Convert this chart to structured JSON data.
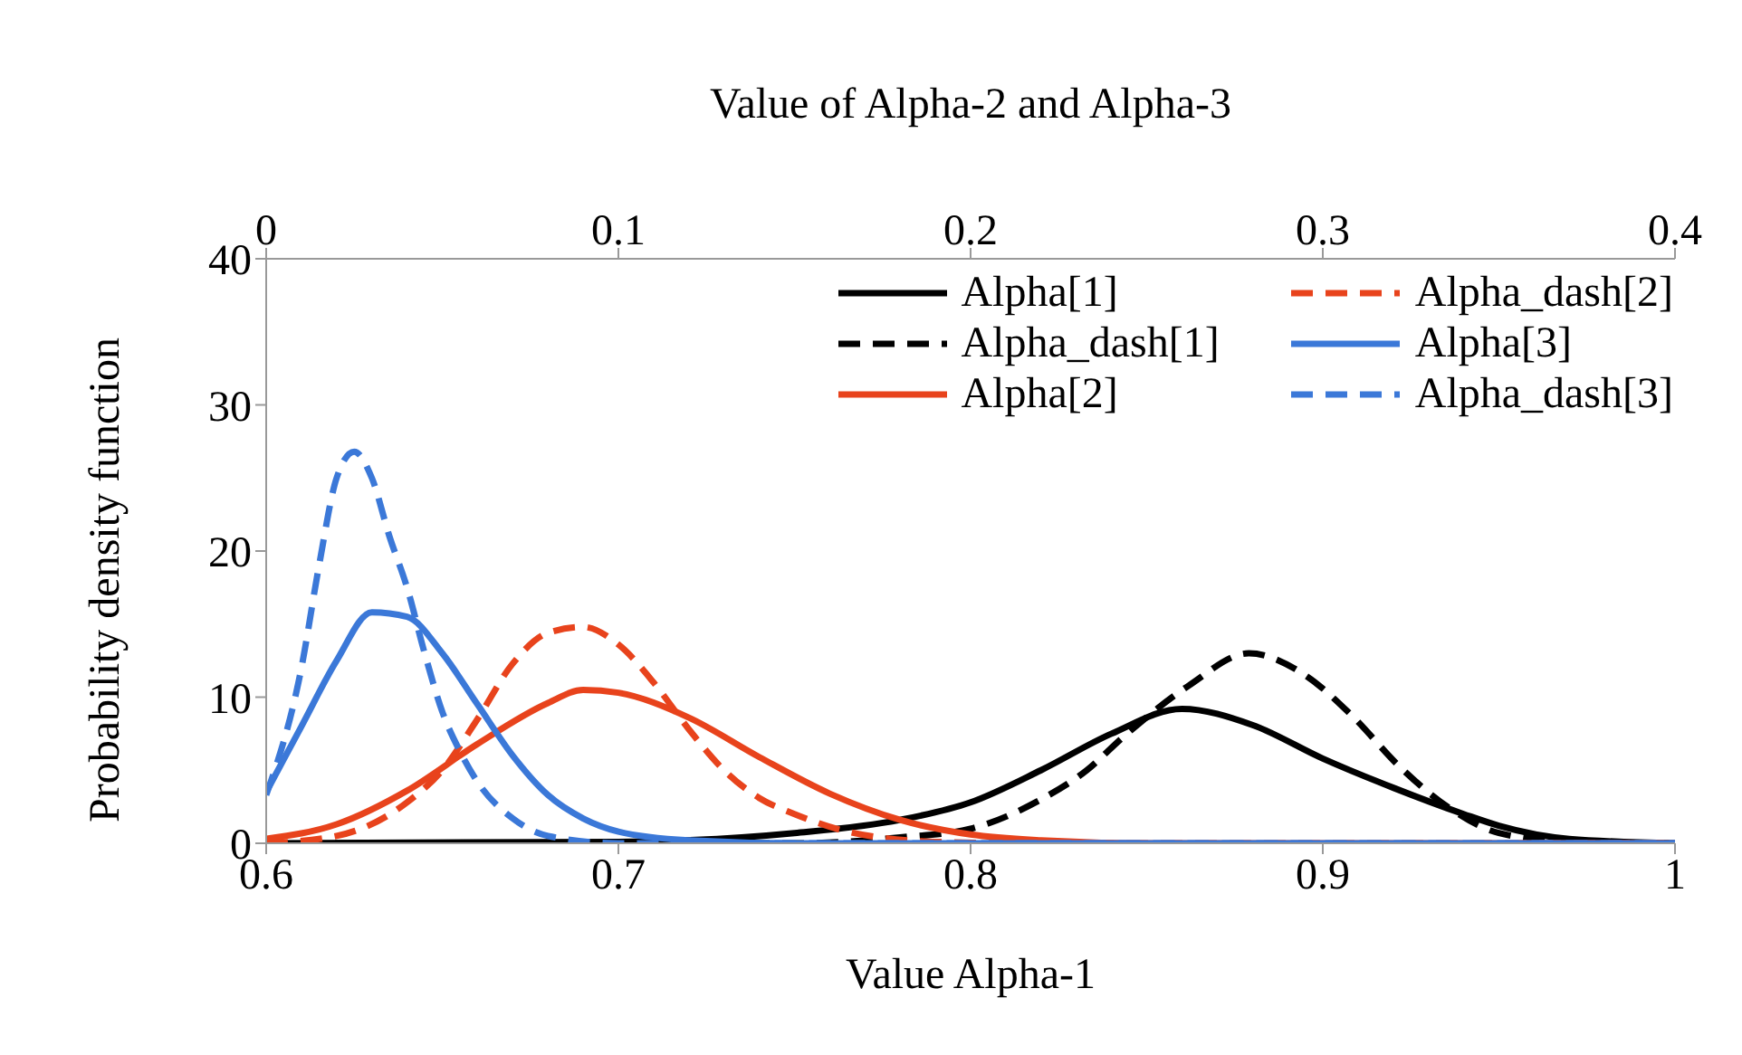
{
  "chart_data": {
    "type": "line",
    "xlabel": "Value Alpha-1",
    "x2label": "Value of Alpha-2 and Alpha-3",
    "ylabel": "Probability density function",
    "xlim": [
      0.6,
      1
    ],
    "xticks": [
      0.6,
      0.7,
      0.8,
      0.9,
      1
    ],
    "x2lim": [
      0,
      0.4
    ],
    "x2ticks": [
      0,
      0.1,
      0.2,
      0.3,
      0.4
    ],
    "ylim": [
      0,
      40
    ],
    "yticks": [
      0,
      10,
      20,
      30,
      40
    ],
    "grid": false,
    "legend": "top right",
    "marker": "none",
    "series": [
      {
        "name": "Alpha[1]",
        "color": "#000000",
        "line_style": "solid",
        "x": [
          0.6,
          0.7,
          0.75,
          0.78,
          0.8,
          0.82,
          0.84,
          0.86,
          0.88,
          0.9,
          0.92,
          0.94,
          0.95,
          0.97,
          1
        ],
        "values": [
          0,
          0.1,
          0.7,
          1.6,
          2.8,
          5,
          7.5,
          9.2,
          8.1,
          5.8,
          3.8,
          2,
          1.2,
          0.3,
          0
        ]
      },
      {
        "name": "Alpha_dash[1]",
        "color": "#000000",
        "line_style": "dashed",
        "x": [
          0.6,
          0.75,
          0.78,
          0.8,
          0.82,
          0.833,
          0.843,
          0.862,
          0.879,
          0.895,
          0.908,
          0.922,
          0.936,
          0.95,
          0.97,
          1
        ],
        "values": [
          0,
          0,
          0.4,
          1,
          3,
          5,
          7.2,
          10.8,
          13,
          11.5,
          8.8,
          5.2,
          2.4,
          0.7,
          0.1,
          0
        ]
      },
      {
        "name": "Alpha[2]",
        "color": "#e8431c",
        "line_style": "solid",
        "axis": "x2",
        "x": [
          0,
          0.02,
          0.04,
          0.06,
          0.08,
          0.09,
          0.1,
          0.12,
          0.14,
          0.16,
          0.18,
          0.2,
          0.22,
          0.25,
          0.4
        ],
        "values": [
          0.3,
          1.3,
          3.6,
          6.8,
          9.6,
          10.5,
          10.3,
          8.6,
          5.9,
          3.4,
          1.6,
          0.6,
          0.2,
          0,
          0
        ]
      },
      {
        "name": "Alpha_dash[2]",
        "color": "#e8431c",
        "line_style": "dashed",
        "axis": "x2",
        "x": [
          0,
          0.02,
          0.04,
          0.05,
          0.06,
          0.07,
          0.08,
          0.09,
          0.1,
          0.11,
          0.12,
          0.13,
          0.14,
          0.15,
          0.165,
          0.19,
          0.22,
          0.4
        ],
        "values": [
          0,
          0.5,
          2.8,
          5,
          8.5,
          12.3,
          14.4,
          14.8,
          13.6,
          11,
          7.8,
          5,
          3.1,
          2,
          0.8,
          0.1,
          0,
          0
        ]
      },
      {
        "name": "Alpha[3]",
        "color": "#3b78d8",
        "line_style": "solid",
        "axis": "x2",
        "x": [
          0,
          0.01,
          0.02,
          0.03,
          0.04,
          0.05,
          0.06,
          0.07,
          0.08,
          0.09,
          0.1,
          0.12,
          0.15,
          0.4
        ],
        "values": [
          3.5,
          8,
          12.5,
          15.8,
          15.5,
          13,
          9.5,
          6,
          3.3,
          1.7,
          0.8,
          0.2,
          0,
          0
        ]
      },
      {
        "name": "Alpha_dash[3]",
        "color": "#3b78d8",
        "line_style": "dashed",
        "axis": "x2",
        "x": [
          0,
          0.01,
          0.015,
          0.02,
          0.025,
          0.03,
          0.035,
          0.04,
          0.045,
          0.05,
          0.055,
          0.06,
          0.07,
          0.08,
          0.1,
          0.4
        ],
        "values": [
          3.3,
          12,
          19,
          25,
          26.8,
          25,
          21,
          17.5,
          13,
          9,
          6.3,
          4.2,
          1.7,
          0.5,
          0,
          0
        ]
      }
    ]
  }
}
